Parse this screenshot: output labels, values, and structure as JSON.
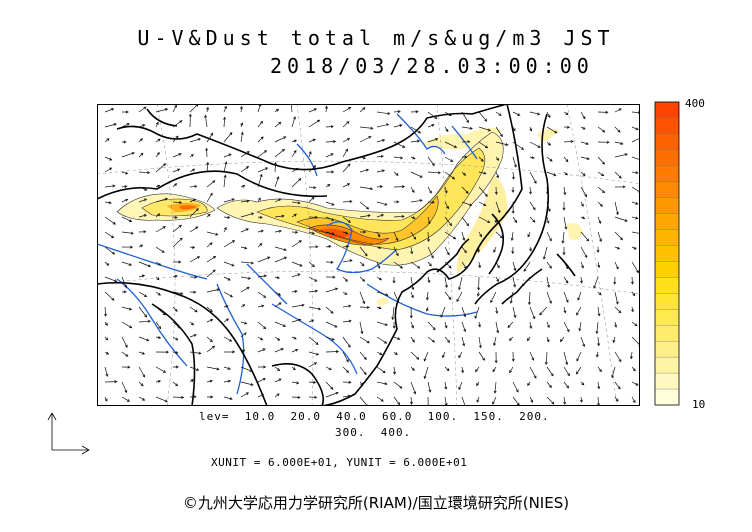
{
  "header": {
    "title": "U-V&Dust total m/s&ug/m3 JST",
    "timestamp": "2018/03/28.03:00:00"
  },
  "colorbar": {
    "max_label": "400",
    "min_label": "10",
    "colors": [
      "#ffffdc",
      "#fff8c0",
      "#fff3a4",
      "#ffef88",
      "#ffec6c",
      "#ffe850",
      "#ffe434",
      "#ffe01a",
      "#ffd000",
      "#ffc200",
      "#ffb400",
      "#ffa600",
      "#ff9800",
      "#ff8a00",
      "#ff7c00",
      "#ff6e00",
      "#ff6000",
      "#ff5200",
      "#ff4400"
    ]
  },
  "legend": {
    "levels_line1": "lev=  10.0  20.0  40.0  60.0  100.  150.  200.",
    "levels_line2": "300.  400.",
    "unit_line": "XUNIT = 6.000E+01, YUNIT = 6.000E+01"
  },
  "footer": {
    "credit": "©九州大学応用力学研究所(RIAM)/国立環境研究所(NIES)"
  },
  "map": {
    "region": "East Asia",
    "dust_plume": "Northern China to Korea, Japan Sea",
    "colors": {
      "coast": "#000000",
      "river": "#1f5fd6",
      "border": "#555555",
      "vector": "#000000",
      "grid": "#888888"
    }
  }
}
